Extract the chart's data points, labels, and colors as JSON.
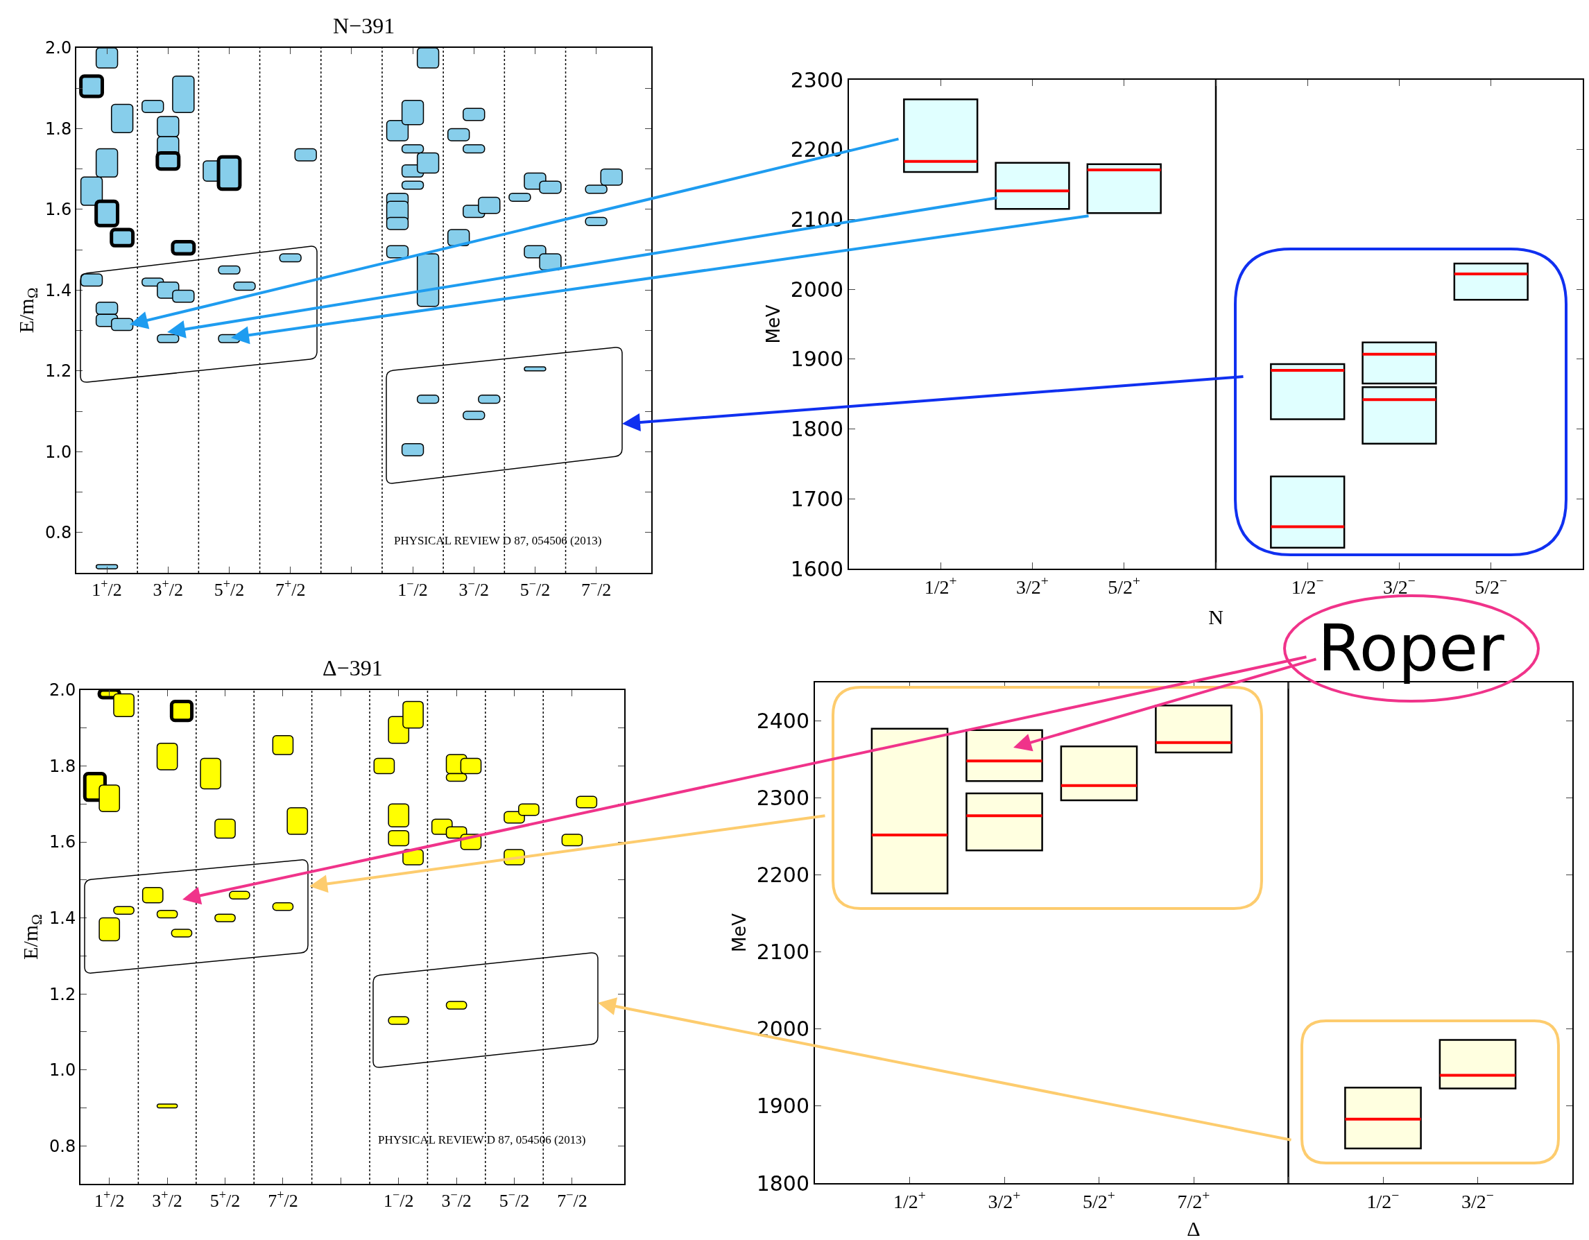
{
  "chart_data": [
    {
      "type": "bar",
      "title": "N−391",
      "ylabel": "E/m$_{Ω}$",
      "categories": [
        "1$^{+}$/2",
        "3$^{+}$/2",
        "5$^{+}$/2",
        "7$^{+}$/2",
        null,
        "1$^{−}$/2",
        "3$^{−}$/2",
        "5$^{−}$/2",
        "7$^{−}$/2"
      ],
      "ylim": [
        0.7,
        2.0
      ],
      "yticks": [
        0.8,
        {
          "value": 0.9,
          "label": null
        },
        {
          "value": 1.0,
          "label": "1.0"
        },
        {
          "value": 1.1,
          "label": null
        },
        1.2,
        {
          "value": 1.3,
          "label": null
        },
        1.4,
        {
          "value": 1.5,
          "label": null
        },
        1.6,
        {
          "value": 1.7,
          "label": null
        },
        1.8,
        {
          "value": 1.9,
          "label": null
        },
        {
          "value": 2.0,
          "label": "2.0"
        }
      ],
      "annotations": [
        "PHYSICAL REVIEW D 87, 054506 (2013)"
      ],
      "series": [
        {
          "color": "#87ceeb",
          "base": [
            1.61,
            1.84,
            1.67,
            null,
            null,
            1.77,
            1.77,
            1.62,
            null
          ],
          "values": [
            0.07,
            0.03,
            0.05,
            null,
            null,
            0.05,
            0.03,
            0.02,
            null
          ]
        },
        {
          "color": "#87ceeb",
          "base": [
            1.41,
            1.41,
            null,
            null,
            null,
            1.61,
            1.51,
            null,
            null
          ],
          "values": [
            0.03,
            0.02,
            null,
            null,
            null,
            0.03,
            0.04,
            null,
            null
          ]
        },
        {
          "color": "#87ceeb",
          "base": [
            null,
            null,
            null,
            null,
            null,
            1.57,
            null,
            null,
            null
          ],
          "values": [
            null,
            null,
            null,
            null,
            null,
            0.05,
            null,
            null,
            null
          ]
        },
        {
          "color": "#87ceeb",
          "base": [
            null,
            null,
            null,
            null,
            null,
            1.55,
            null,
            null,
            null
          ],
          "values": [
            null,
            null,
            null,
            null,
            null,
            0.03,
            null,
            null,
            null
          ]
        },
        {
          "color": "#87ceeb",
          "base": [
            null,
            null,
            null,
            null,
            null,
            1.48,
            null,
            null,
            null
          ],
          "values": [
            null,
            null,
            null,
            null,
            null,
            0.03,
            null,
            null,
            null
          ]
        },
        {
          "color": "#87ceeb",
          "base": [
            1.88,
            null,
            null,
            null,
            null,
            null,
            null,
            null,
            null
          ],
          "values": [
            0.05,
            null,
            null,
            null,
            null,
            null,
            null,
            null,
            null
          ]
        },
        {
          "color": "#87ceeb",
          "base": [
            1.95,
            1.78,
            1.44,
            1.47,
            null,
            1.81,
            1.82,
            1.65,
            1.64
          ],
          "values": [
            0.05,
            0.05,
            0.02,
            0.02,
            null,
            0.06,
            0.03,
            0.04,
            0.02
          ]
        },
        {
          "color": "#87ceeb",
          "base": [
            1.68,
            1.73,
            1.27,
            null,
            null,
            1.74,
            1.74,
            1.48,
            1.56
          ],
          "values": [
            0.07,
            0.05,
            0.02,
            null,
            null,
            0.02,
            0.02,
            0.03,
            0.02
          ]
        },
        {
          "color": "#87ceeb",
          "base": [
            1.34,
            1.38,
            null,
            null,
            null,
            1.68,
            1.58,
            1.2,
            null
          ],
          "values": [
            0.03,
            0.04,
            null,
            null,
            null,
            0.03,
            0.03,
            0.01,
            null
          ]
        },
        {
          "color": "#87ceeb",
          "base": [
            1.31,
            1.27,
            null,
            null,
            null,
            1.65,
            1.08,
            null,
            null
          ],
          "values": [
            0.03,
            0.02,
            null,
            null,
            null,
            0.02,
            0.02,
            null,
            null
          ]
        },
        {
          "color": "#87ceeb",
          "base": [
            0.71,
            null,
            null,
            null,
            null,
            0.99,
            null,
            null,
            null
          ],
          "values": [
            0.01,
            null,
            null,
            null,
            null,
            0.03,
            null,
            null,
            null
          ]
        },
        {
          "color": "#87ceeb",
          "base": [
            1.56,
            1.7,
            1.65,
            null,
            null,
            null,
            null,
            null,
            null
          ],
          "values": [
            0.06,
            0.04,
            0.08,
            null,
            null,
            null,
            null,
            null,
            null
          ]
        },
        {
          "color": "#87ceeb",
          "base": [
            1.79,
            1.84,
            1.4,
            1.72,
            null,
            1.95,
            1.59,
            1.64,
            1.66
          ],
          "values": [
            0.07,
            0.09,
            0.02,
            0.03,
            null,
            0.05,
            0.04,
            0.03,
            0.04
          ]
        },
        {
          "color": "#87ceeb",
          "base": [
            1.3,
            1.37,
            null,
            null,
            null,
            1.69,
            1.12,
            1.45,
            null
          ],
          "values": [
            0.03,
            0.03,
            null,
            null,
            null,
            0.05,
            0.02,
            0.04,
            null
          ]
        },
        {
          "color": "#87ceeb",
          "base": [
            null,
            null,
            null,
            null,
            null,
            1.36,
            null,
            null,
            null
          ],
          "values": [
            null,
            null,
            null,
            null,
            null,
            0.13,
            null,
            null,
            null
          ]
        },
        {
          "color": "#87ceeb",
          "base": [
            null,
            null,
            null,
            null,
            null,
            1.12,
            null,
            null,
            null
          ],
          "values": [
            null,
            null,
            null,
            null,
            null,
            0.02,
            null,
            null,
            null
          ]
        },
        {
          "color": "#87ceeb",
          "base": [
            1.51,
            1.49,
            null,
            null,
            null,
            null,
            null,
            null,
            null
          ],
          "values": [
            0.04,
            0.03,
            null,
            null,
            null,
            null,
            null,
            null,
            null
          ]
        }
      ]
    },
    {
      "type": "bar",
      "title": "Δ−391",
      "ylabel": "E/m$_{Ω}$",
      "categories": [
        "1$^{+}$/2",
        "3$^{+}$/2",
        "5$^{+}$/2",
        "7$^{+}$/2",
        null,
        "1$^{−}$/2",
        "3$^{−}$/2",
        "5$^{−}$/2",
        "7$^{−}$/2"
      ],
      "ylim": [
        0.7,
        2.0
      ],
      "yticks": [
        0.8,
        {
          "value": 0.9,
          "label": null
        },
        {
          "value": 1.0,
          "label": "1.0"
        },
        {
          "value": 1.1,
          "label": null
        },
        1.2,
        {
          "value": 1.3,
          "label": null
        },
        1.4,
        {
          "value": 1.5,
          "label": null
        },
        1.6,
        {
          "value": 1.7,
          "label": null
        },
        1.8,
        {
          "value": 1.9,
          "label": null
        },
        {
          "value": 2.0,
          "label": "2.0"
        }
      ],
      "annotations": [
        "PHYSICAL REVIEW D 87, 054506 (2013)"
      ],
      "series": [
        {
          "color": "#ffff00",
          "base": [
            null,
            1.44,
            1.74,
            null,
            null,
            1.78,
            1.62,
            null,
            null
          ],
          "values": [
            null,
            0.04,
            0.08,
            null,
            null,
            0.04,
            0.04,
            null,
            null
          ]
        },
        {
          "color": "#ffff00",
          "base": [
            1.71,
            null,
            null,
            null,
            null,
            null,
            null,
            null,
            null
          ],
          "values": [
            0.07,
            null,
            null,
            null,
            null,
            null,
            null,
            null,
            null
          ]
        },
        {
          "color": "#ffff00",
          "base": [
            1.68,
            1.79,
            1.61,
            1.83,
            null,
            1.86,
            1.78,
            1.65,
            1.59
          ],
          "values": [
            0.07,
            0.07,
            0.05,
            0.05,
            null,
            0.07,
            0.05,
            0.03,
            0.03
          ]
        },
        {
          "color": "#ffff00",
          "base": [
            1.34,
            1.4,
            1.39,
            1.42,
            null,
            1.64,
            1.76,
            1.54,
            null
          ],
          "values": [
            0.06,
            0.02,
            0.02,
            0.02,
            null,
            0.06,
            0.02,
            0.04,
            null
          ]
        },
        {
          "color": "#ffff00",
          "base": [
            null,
            0.9,
            null,
            null,
            null,
            1.59,
            1.61,
            null,
            null
          ],
          "values": [
            null,
            0.01,
            null,
            null,
            null,
            0.04,
            0.03,
            null,
            null
          ]
        },
        {
          "color": "#ffff00",
          "base": [
            null,
            null,
            null,
            null,
            null,
            1.12,
            1.16,
            null,
            null
          ],
          "values": [
            null,
            null,
            null,
            null,
            null,
            0.02,
            0.02,
            null,
            null
          ]
        },
        {
          "color": "#ffff00",
          "base": [
            1.98,
            null,
            null,
            null,
            null,
            null,
            null,
            null,
            null
          ],
          "values": [
            0.02,
            null,
            null,
            null,
            null,
            null,
            null,
            null,
            null
          ]
        },
        {
          "color": "#ffff00",
          "base": [
            1.93,
            1.35,
            1.45,
            1.62,
            null,
            1.9,
            1.78,
            1.67,
            1.69
          ],
          "values": [
            0.06,
            0.02,
            0.02,
            0.07,
            null,
            0.07,
            0.04,
            0.03,
            0.03
          ]
        },
        {
          "color": "#ffff00",
          "base": [
            1.41,
            null,
            null,
            null,
            null,
            1.54,
            1.58,
            null,
            null
          ],
          "values": [
            0.02,
            null,
            null,
            null,
            null,
            0.04,
            0.04,
            null,
            null
          ]
        },
        {
          "color": "#ffff00",
          "base": [
            null,
            1.92,
            null,
            null,
            null,
            null,
            null,
            null,
            null
          ],
          "values": [
            null,
            0.05,
            null,
            null,
            null,
            null,
            null,
            null,
            null
          ]
        }
      ]
    },
    {
      "type": "box",
      "xlabel": "N",
      "ylabel": "MeV",
      "categories": [
        "1/2$^{+}$",
        "3/2$^{+}$",
        "5/2$^{+}$",
        null,
        "1/2$^{−}$",
        "3/2$^{−}$",
        "5/2$^{−}$"
      ],
      "ylim": [
        1600,
        2300
      ],
      "yticks": [
        1600,
        1700,
        1800,
        1900,
        2000,
        2100,
        2200,
        2300
      ],
      "series": [
        {
          "color": "#e0ffff",
          "boxes": [
            {
              "low": 2168,
              "q1": 2168,
              "median": 2183,
              "q3": 2272,
              "high": 2272
            },
            {
              "low": 2115,
              "q1": 2115,
              "median": 2141,
              "q3": 2181,
              "high": 2181
            },
            {
              "low": 2109,
              "q1": 2109,
              "median": 2171,
              "q3": 2179,
              "high": 2179
            },
            null,
            {
              "low": 1814,
              "q1": 1814,
              "median": 1884,
              "q3": 1893,
              "high": 1893
            },
            {
              "low": 1865,
              "q1": 1865,
              "median": 1907,
              "q3": 1924,
              "high": 1924
            },
            {
              "low": 1985,
              "q1": 1985,
              "median": 2022,
              "q3": 2037,
              "high": 2037
            }
          ]
        },
        {
          "color": "#e0ffff",
          "boxes": [
            null,
            null,
            null,
            null,
            {
              "low": 1630,
              "q1": 1630,
              "median": 1660,
              "q3": 1732,
              "high": 1732
            },
            {
              "low": 1779,
              "q1": 1779,
              "median": 1842,
              "q3": 1860,
              "high": 1860
            },
            null
          ]
        }
      ]
    },
    {
      "type": "box",
      "xlabel": "Δ",
      "ylabel": "MeV",
      "categories": [
        "1/2$^{+}$",
        "3/2$^{+}$",
        "5/2$^{+}$",
        "7/2$^{+}$",
        null,
        "1/2$^{−}$",
        "3/2$^{−}$"
      ],
      "ylim": [
        1800,
        2450
      ],
      "yticks": [
        1800,
        1900,
        2000,
        2100,
        2200,
        2300,
        2400
      ],
      "annotations": [
        "Roper"
      ],
      "series": [
        {
          "color": "#ffffe0",
          "boxes": [
            {
              "low": 2176,
              "q1": 2176,
              "median": 2252,
              "q3": 2390,
              "high": 2390
            },
            {
              "low": 2322,
              "q1": 2322,
              "median": 2348,
              "q3": 2388,
              "high": 2388
            },
            {
              "low": 2297,
              "q1": 2297,
              "median": 2316,
              "q3": 2367,
              "high": 2367
            },
            {
              "low": 2359,
              "q1": 2359,
              "median": 2372,
              "q3": 2420,
              "high": 2420
            },
            null,
            {
              "low": 1845,
              "q1": 1845,
              "median": 1883,
              "q3": 1924,
              "high": 1924
            },
            {
              "low": 1923,
              "q1": 1923,
              "median": 1940,
              "q3": 1986,
              "high": 1986
            }
          ]
        },
        {
          "color": "#ffffe0",
          "boxes": [
            null,
            {
              "low": 2232,
              "q1": 2232,
              "median": 2277,
              "q3": 2306,
              "high": 2306
            },
            null,
            null,
            null,
            null,
            null
          ]
        }
      ]
    }
  ]
}
